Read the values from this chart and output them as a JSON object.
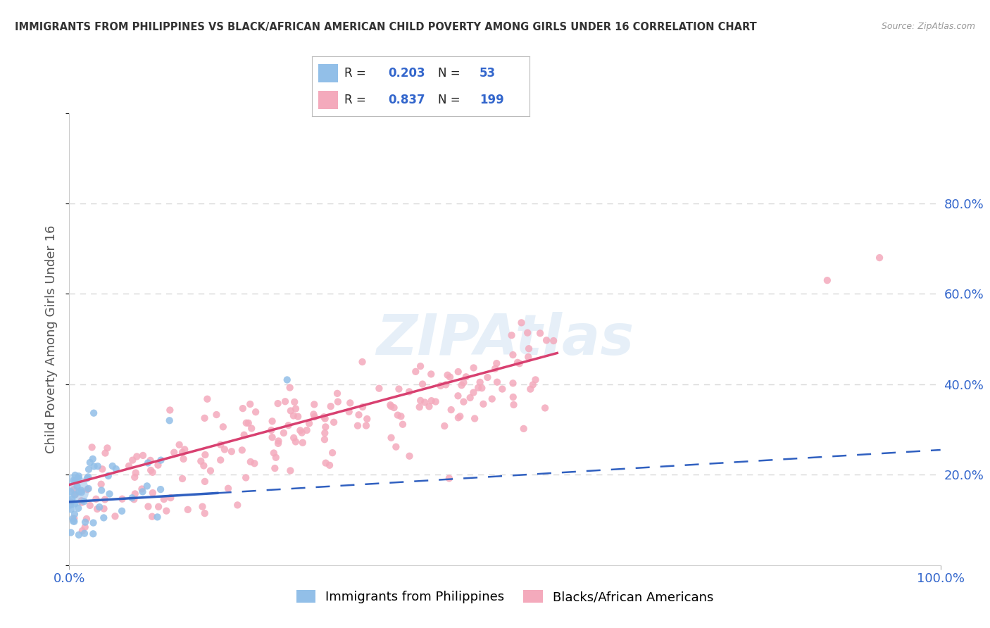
{
  "title": "IMMIGRANTS FROM PHILIPPINES VS BLACK/AFRICAN AMERICAN CHILD POVERTY AMONG GIRLS UNDER 16 CORRELATION CHART",
  "source": "Source: ZipAtlas.com",
  "ylabel": "Child Poverty Among Girls Under 16",
  "watermark": "ZIPAtlas",
  "blue_R": 0.203,
  "blue_N": 53,
  "pink_R": 0.837,
  "pink_N": 199,
  "blue_label": "Immigrants from Philippines",
  "pink_label": "Blacks/African Americans",
  "xlim": [
    0.0,
    1.0
  ],
  "ylim": [
    0.0,
    1.0
  ],
  "yticks": [
    0.2,
    0.4,
    0.6,
    0.8
  ],
  "ytick_labels": [
    "20.0%",
    "40.0%",
    "60.0%",
    "80.0%"
  ],
  "xticks": [
    0.0,
    1.0
  ],
  "xtick_labels": [
    "0.0%",
    "100.0%"
  ],
  "background_color": "#ffffff",
  "grid_color": "#d8d8d8",
  "blue_color": "#92bfe8",
  "pink_color": "#f4aabc",
  "blue_line_color": "#3060c0",
  "pink_line_color": "#d84070",
  "title_color": "#333333",
  "source_color": "#999999",
  "label_color": "#3366cc",
  "blue_scatter_seed": 42,
  "pink_scatter_seed": 7
}
